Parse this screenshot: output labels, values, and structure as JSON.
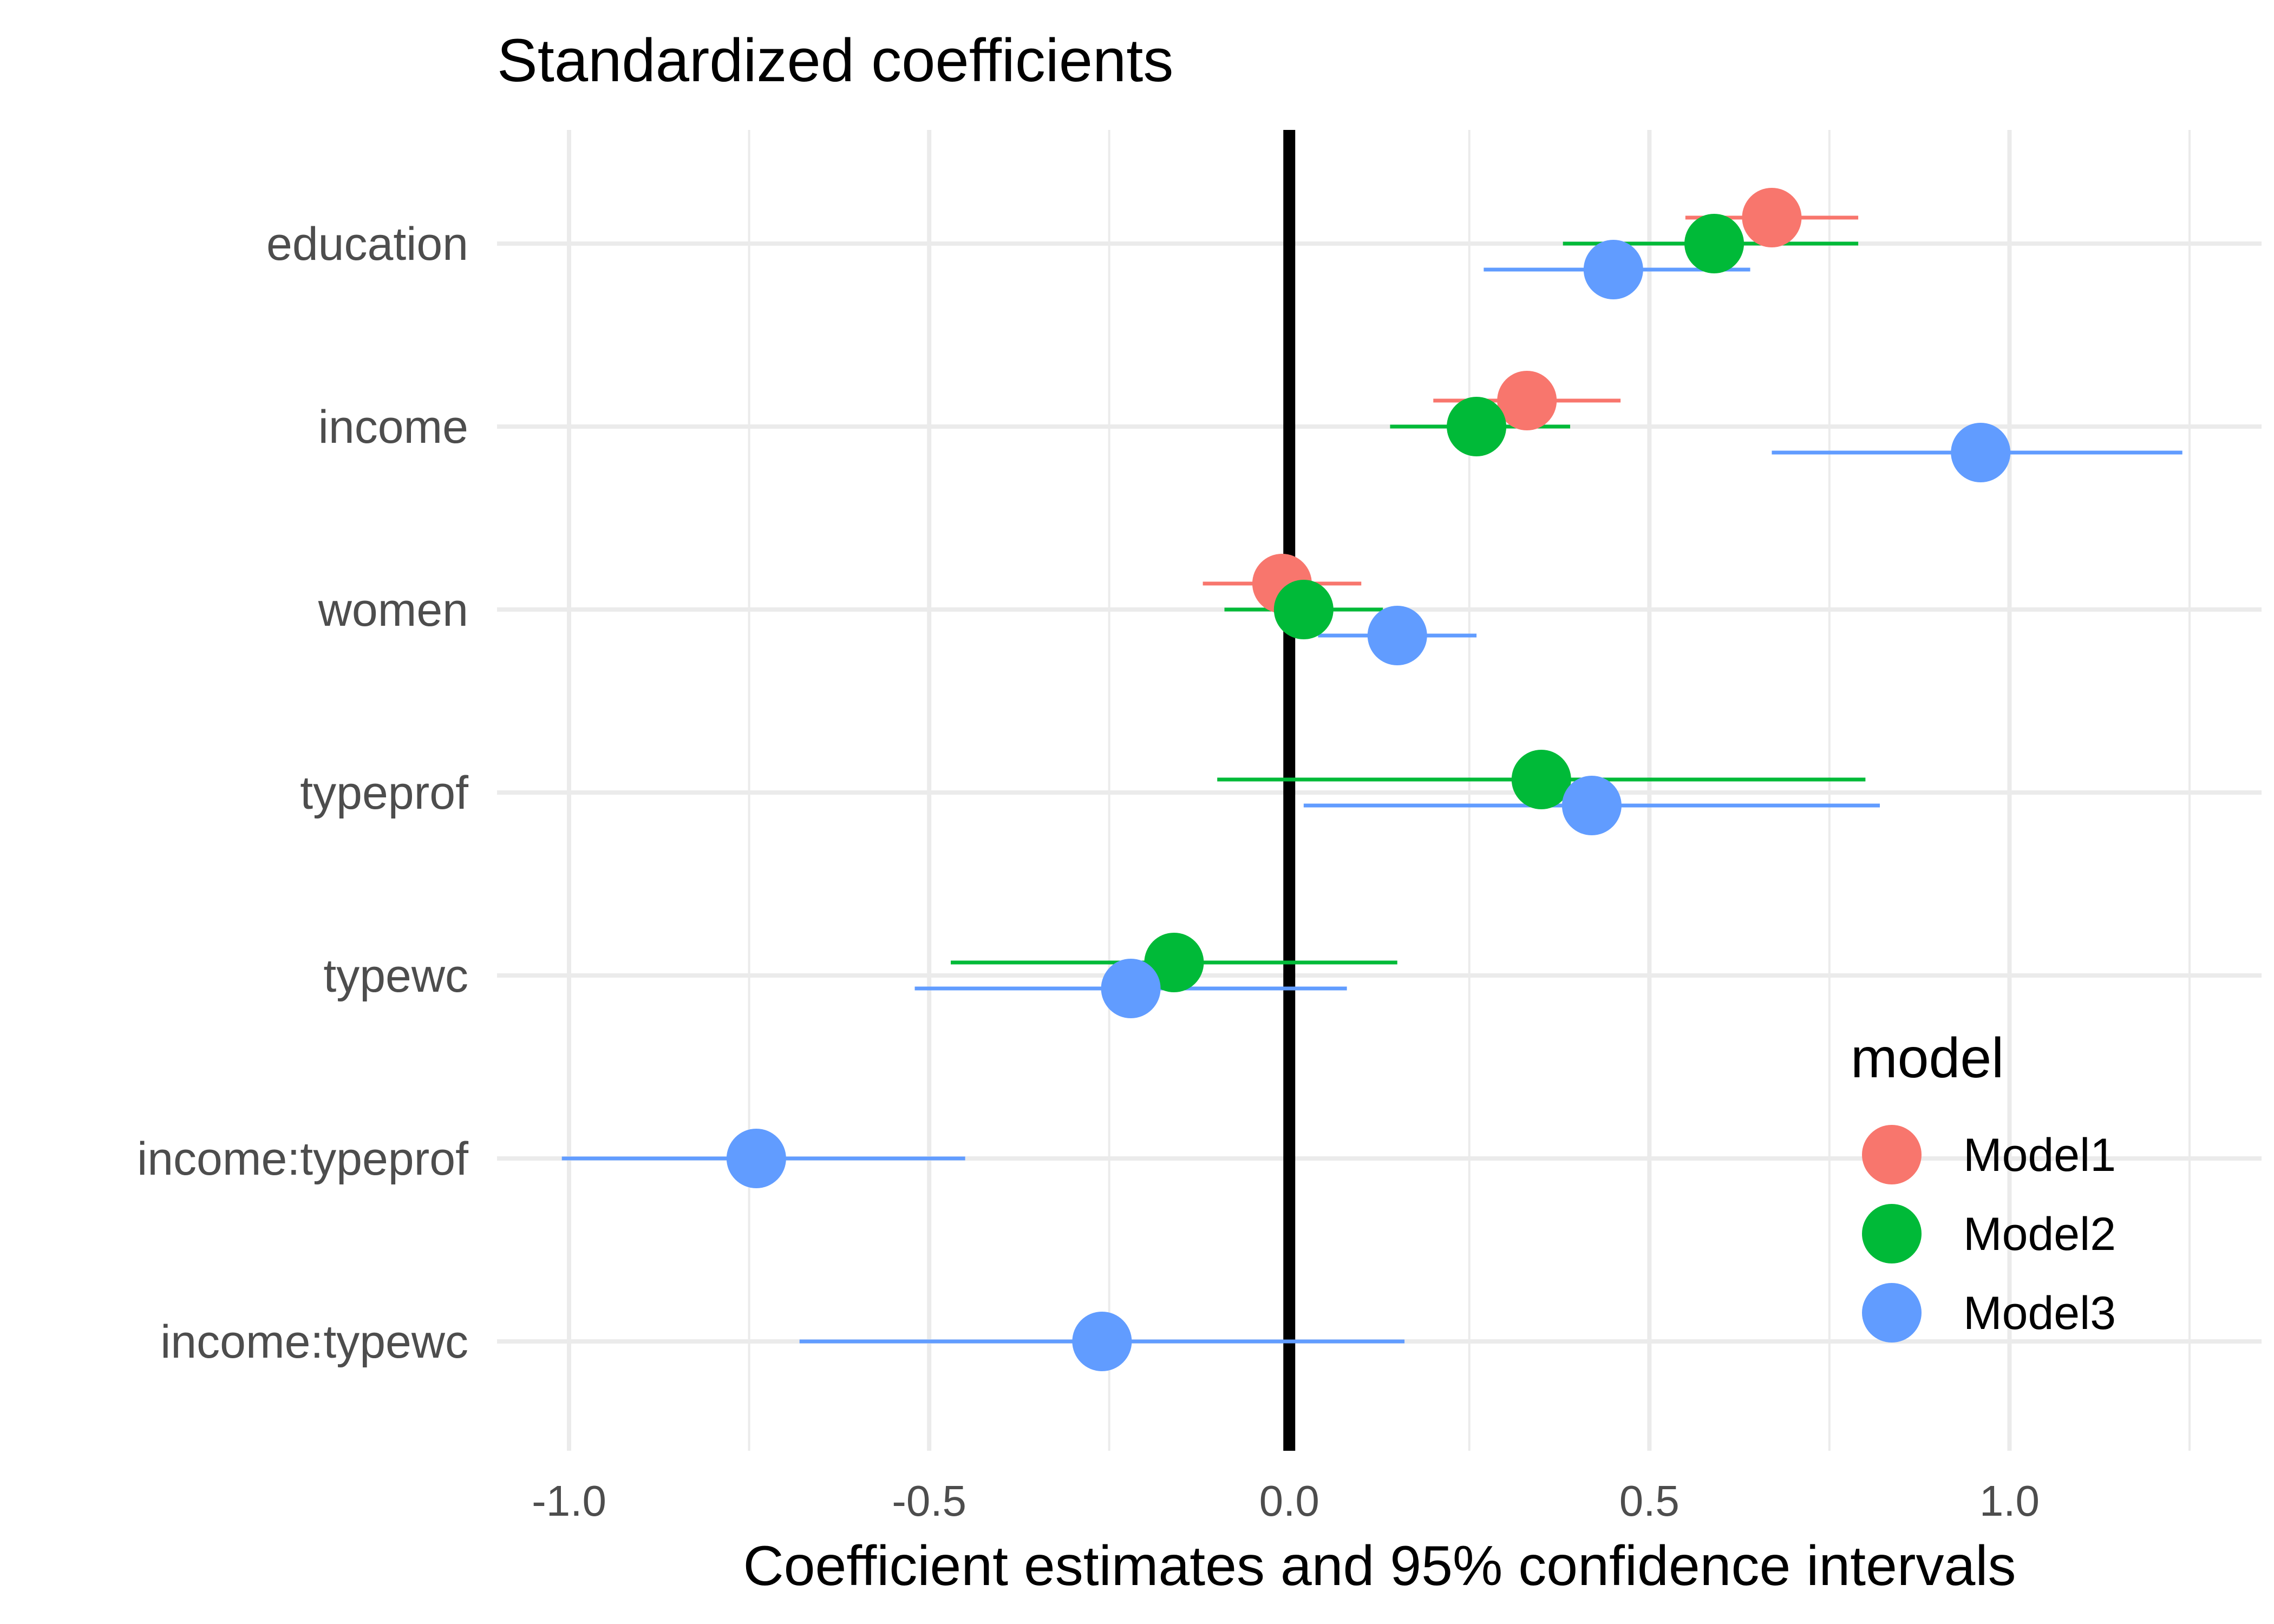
{
  "chart_data": {
    "type": "scatter",
    "title": "Standardized coefficients",
    "xlabel": "Coefficient estimates and 95% confidence intervals",
    "ylabel": "",
    "xlim": [
      -1.1,
      1.35
    ],
    "xticks": [
      {
        "value": -1.0,
        "label": "-1.0"
      },
      {
        "value": -0.5,
        "label": "-0.5"
      },
      {
        "value": 0.0,
        "label": "0.0"
      },
      {
        "value": 0.5,
        "label": "0.5"
      },
      {
        "value": 1.0,
        "label": "1.0"
      }
    ],
    "x_minor_gridlines": [
      -0.75,
      -0.25,
      0.25,
      0.75,
      1.25
    ],
    "reference_line": 0,
    "categories": [
      "education",
      "income",
      "women",
      "typeprof",
      "typewc",
      "income:typeprof",
      "income:typewc"
    ],
    "grid": true,
    "legend": {
      "title": "model",
      "placement": "right"
    },
    "series": [
      {
        "name": "Model1",
        "color": "#F8766D",
        "points": [
          {
            "category": "education",
            "estimate": 0.67,
            "ci_low": 0.55,
            "ci_high": 0.79
          },
          {
            "category": "income",
            "estimate": 0.33,
            "ci_low": 0.2,
            "ci_high": 0.46
          },
          {
            "category": "women",
            "estimate": -0.01,
            "ci_low": -0.12,
            "ci_high": 0.1
          }
        ]
      },
      {
        "name": "Model2",
        "color": "#00BA38",
        "points": [
          {
            "category": "education",
            "estimate": 0.59,
            "ci_low": 0.38,
            "ci_high": 0.79
          },
          {
            "category": "income",
            "estimate": 0.26,
            "ci_low": 0.14,
            "ci_high": 0.39
          },
          {
            "category": "women",
            "estimate": 0.02,
            "ci_low": -0.09,
            "ci_high": 0.13
          },
          {
            "category": "typeprof",
            "estimate": 0.35,
            "ci_low": -0.1,
            "ci_high": 0.8
          },
          {
            "category": "typewc",
            "estimate": -0.16,
            "ci_low": -0.47,
            "ci_high": 0.15
          }
        ]
      },
      {
        "name": "Model3",
        "color": "#619CFF",
        "points": [
          {
            "category": "education",
            "estimate": 0.45,
            "ci_low": 0.27,
            "ci_high": 0.64
          },
          {
            "category": "income",
            "estimate": 0.96,
            "ci_low": 0.67,
            "ci_high": 1.24
          },
          {
            "category": "women",
            "estimate": 0.15,
            "ci_low": 0.04,
            "ci_high": 0.26
          },
          {
            "category": "typeprof",
            "estimate": 0.42,
            "ci_low": 0.02,
            "ci_high": 0.82
          },
          {
            "category": "typewc",
            "estimate": -0.22,
            "ci_low": -0.52,
            "ci_high": 0.08
          },
          {
            "category": "income:typeprof",
            "estimate": -0.74,
            "ci_low": -1.01,
            "ci_high": -0.45
          },
          {
            "category": "income:typewc",
            "estimate": -0.26,
            "ci_low": -0.68,
            "ci_high": 0.16
          }
        ]
      }
    ]
  }
}
